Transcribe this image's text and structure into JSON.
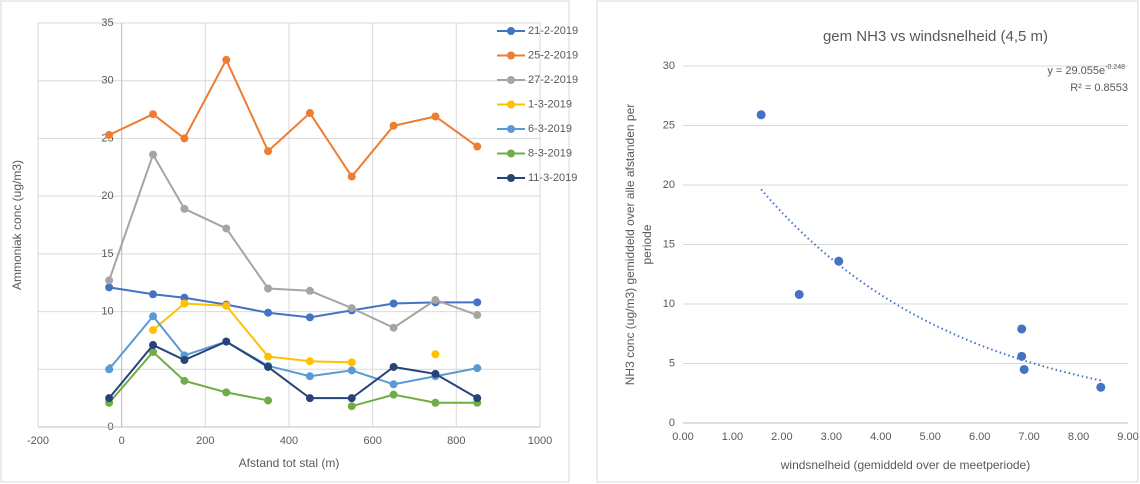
{
  "chart_data": [
    {
      "type": "line",
      "x_label": "Afstand tot stal (m)",
      "y_label": "Ammoniak conc (ug/m3)",
      "x": [
        -30,
        75,
        150,
        250,
        350,
        450,
        550,
        650,
        750,
        850
      ],
      "series": [
        {
          "name": "21-2-2019",
          "color": "#4472c4",
          "values": [
            12.1,
            11.5,
            11.2,
            10.6,
            9.9,
            9.5,
            10.1,
            10.7,
            10.8,
            10.8
          ]
        },
        {
          "name": "25-2-2019",
          "color": "#ed7d31",
          "values": [
            25.3,
            27.1,
            25.0,
            31.8,
            23.9,
            27.2,
            21.7,
            26.1,
            26.9,
            24.3
          ]
        },
        {
          "name": "27-2-2019",
          "color": "#a5a5a5",
          "values": [
            12.7,
            23.6,
            18.9,
            17.2,
            12.0,
            11.8,
            10.3,
            8.6,
            11.0,
            9.7
          ]
        },
        {
          "name": "1-3-2019",
          "color": "#ffc000",
          "values": [
            null,
            8.4,
            10.7,
            10.5,
            6.1,
            5.7,
            5.6,
            null,
            6.3,
            null
          ]
        },
        {
          "name": "6-3-2019",
          "color": "#5b9bd5",
          "values": [
            5.0,
            9.6,
            6.2,
            7.4,
            5.3,
            4.4,
            4.9,
            3.7,
            4.4,
            5.1
          ]
        },
        {
          "name": "8-3-2019",
          "color": "#70ad47",
          "values": [
            2.1,
            6.5,
            4.0,
            3.0,
            2.3,
            null,
            1.8,
            2.8,
            2.1,
            2.1
          ]
        },
        {
          "name": "11-3-2019",
          "color": "#264478",
          "values": [
            2.5,
            7.1,
            5.8,
            7.4,
            5.2,
            2.5,
            2.5,
            5.2,
            4.6,
            2.5
          ]
        }
      ],
      "xlim": [
        -200,
        1000
      ],
      "xticks": [
        -200,
        0,
        200,
        400,
        600,
        800,
        1000
      ],
      "ylim": [
        0,
        35
      ],
      "yticks": [
        0,
        5,
        10,
        15,
        20,
        25,
        30,
        35
      ],
      "grid": true,
      "legend": "right"
    },
    {
      "type": "scatter",
      "title": "gem NH3 vs windsnelheid (4,5 m)",
      "x_label": "windsnelheid (gemiddeld over de meetperiode)",
      "y_label": [
        "NH3 conc (ug/m3) gemiddeld over alle afstanden per",
        "periode"
      ],
      "x": [
        1.58,
        2.35,
        3.15,
        6.85,
        6.85,
        6.9,
        8.45
      ],
      "values": [
        25.9,
        10.8,
        13.6,
        7.9,
        5.6,
        4.5,
        3.0
      ],
      "color": "#4472c4",
      "trendline": {
        "coefficient": 29.055,
        "rate": -0.248,
        "label": "y = 29.055e",
        "exponent_label": "-0.248",
        "r2_label": "R² = 0.8553"
      },
      "xlim": [
        0,
        9
      ],
      "xticks": [
        {
          "value": 0,
          "label": "0.00"
        },
        {
          "value": 1,
          "label": "1.00"
        },
        {
          "value": 2,
          "label": "2.00"
        },
        {
          "value": 3,
          "label": "3.00"
        },
        {
          "value": 4,
          "label": "4.00"
        },
        {
          "value": 5,
          "label": "5.00"
        },
        {
          "value": 6,
          "label": "6.00"
        },
        {
          "value": 7,
          "label": "7.00"
        },
        {
          "value": 8,
          "label": "8.00"
        },
        {
          "value": 9,
          "label": "9.00"
        }
      ],
      "ylim": [
        0,
        30
      ],
      "yticks": [
        0,
        5,
        10,
        15,
        20,
        25,
        30
      ],
      "grid": true
    }
  ]
}
